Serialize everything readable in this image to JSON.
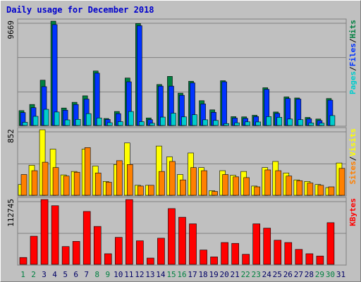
{
  "title": "Daily usage for December 2018",
  "colors": {
    "background": "#c0c0c0",
    "panel_border": "#808080",
    "title": "#0000cc",
    "pages": "#00cccc",
    "files": "#0033ff",
    "hits": "#008040",
    "visits": "#ffff00",
    "sites": "#ff8000",
    "kbytes": "#ff0000",
    "weekday_label": "#000066",
    "weekend_label": "#008040"
  },
  "chart_data": [
    {
      "type": "bar",
      "panel": "hits-files-pages",
      "ymax_label": "9669",
      "ylim": [
        0,
        9669
      ],
      "right_labels": [
        {
          "text": "Pages",
          "color": "#00cccc"
        },
        {
          "text": "/",
          "color": "#000000"
        },
        {
          "text": "Files",
          "color": "#0033ff"
        },
        {
          "text": "/",
          "color": "#000000"
        },
        {
          "text": "Hits",
          "color": "#008040"
        }
      ],
      "categories": [
        "1",
        "2",
        "3",
        "4",
        "5",
        "6",
        "7",
        "8",
        "9",
        "10",
        "11",
        "12",
        "13",
        "14",
        "15",
        "16",
        "17",
        "18",
        "19",
        "20",
        "21",
        "22",
        "23",
        "24",
        "25",
        "26",
        "27",
        "28",
        "29",
        "30",
        "31"
      ],
      "series": [
        {
          "name": "Hits",
          "color": "#008040",
          "values": [
            1380,
            1950,
            4200,
            9669,
            1620,
            2150,
            2750,
            5050,
            650,
            1300,
            4400,
            9450,
            700,
            3800,
            4550,
            3000,
            4100,
            2300,
            1450,
            4150,
            820,
            800,
            950,
            3500,
            1250,
            2650,
            2550,
            750,
            600,
            2500,
            0
          ]
        },
        {
          "name": "Files",
          "color": "#0033ff",
          "values": [
            1200,
            1650,
            3600,
            9350,
            1420,
            1950,
            2450,
            4850,
            560,
            1100,
            4050,
            9250,
            540,
            3650,
            3650,
            2800,
            3950,
            2000,
            1220,
            4050,
            690,
            660,
            830,
            3350,
            1120,
            2500,
            2450,
            620,
            460,
            2350,
            0
          ]
        },
        {
          "name": "Pages",
          "color": "#00cccc",
          "values": [
            300,
            850,
            1500,
            1250,
            520,
            570,
            1100,
            700,
            260,
            360,
            1300,
            360,
            210,
            780,
            1140,
            800,
            1000,
            530,
            470,
            180,
            250,
            340,
            330,
            820,
            760,
            600,
            540,
            240,
            220,
            920,
            0
          ]
        }
      ]
    },
    {
      "type": "bar",
      "panel": "visits-sites",
      "ymax_label": "852",
      "ylim": [
        0,
        852
      ],
      "right_labels": [
        {
          "text": "Sites",
          "color": "#ff8000"
        },
        {
          "text": "/",
          "color": "#000000"
        },
        {
          "text": "Visits",
          "color": "#ffff00"
        }
      ],
      "categories": [
        "1",
        "2",
        "3",
        "4",
        "5",
        "6",
        "7",
        "8",
        "9",
        "10",
        "11",
        "12",
        "13",
        "14",
        "15",
        "16",
        "17",
        "18",
        "19",
        "20",
        "21",
        "22",
        "23",
        "24",
        "25",
        "26",
        "27",
        "28",
        "29",
        "30",
        "31"
      ],
      "series": [
        {
          "name": "Visits",
          "color": "#ffff00",
          "values": [
            140,
            390,
            852,
            600,
            265,
            310,
            600,
            380,
            180,
            400,
            680,
            130,
            130,
            640,
            500,
            270,
            550,
            360,
            60,
            320,
            260,
            310,
            120,
            360,
            440,
            290,
            200,
            180,
            140,
            100,
            420
          ]
        },
        {
          "name": "Sites",
          "color": "#ff8000",
          "values": [
            270,
            320,
            430,
            360,
            250,
            300,
            620,
            290,
            170,
            450,
            400,
            120,
            130,
            310,
            440,
            200,
            360,
            320,
            50,
            270,
            240,
            230,
            110,
            330,
            320,
            250,
            190,
            160,
            130,
            110,
            350
          ]
        }
      ]
    },
    {
      "type": "bar",
      "panel": "kbytes",
      "ymax_label": "112745",
      "ylim": [
        0,
        112745
      ],
      "right_labels": [
        {
          "text": "KBytes",
          "color": "#ff0000"
        }
      ],
      "categories": [
        "1",
        "2",
        "3",
        "4",
        "5",
        "6",
        "7",
        "8",
        "9",
        "10",
        "11",
        "12",
        "13",
        "14",
        "15",
        "16",
        "17",
        "18",
        "19",
        "20",
        "21",
        "22",
        "23",
        "24",
        "25",
        "26",
        "27",
        "28",
        "29",
        "30",
        "31"
      ],
      "series": [
        {
          "name": "KBytes",
          "color": "#ff0000",
          "values": [
            12000,
            49000,
            112745,
            102000,
            31000,
            40000,
            92000,
            66000,
            18500,
            47000,
            112745,
            41000,
            11000,
            45500,
            97000,
            82000,
            70500,
            25000,
            13000,
            38000,
            36500,
            17500,
            70500,
            63000,
            42000,
            38000,
            26000,
            18500,
            14500,
            72500,
            0
          ]
        }
      ]
    }
  ],
  "x_labels": [
    {
      "day": "1",
      "weekend": true
    },
    {
      "day": "2",
      "weekend": true
    },
    {
      "day": "3",
      "weekend": false
    },
    {
      "day": "4",
      "weekend": false
    },
    {
      "day": "5",
      "weekend": false
    },
    {
      "day": "6",
      "weekend": false
    },
    {
      "day": "7",
      "weekend": false
    },
    {
      "day": "8",
      "weekend": true
    },
    {
      "day": "9",
      "weekend": true
    },
    {
      "day": "10",
      "weekend": false
    },
    {
      "day": "11",
      "weekend": false
    },
    {
      "day": "12",
      "weekend": false
    },
    {
      "day": "13",
      "weekend": false
    },
    {
      "day": "14",
      "weekend": false
    },
    {
      "day": "15",
      "weekend": true
    },
    {
      "day": "16",
      "weekend": true
    },
    {
      "day": "17",
      "weekend": false
    },
    {
      "day": "18",
      "weekend": false
    },
    {
      "day": "19",
      "weekend": false
    },
    {
      "day": "20",
      "weekend": false
    },
    {
      "day": "21",
      "weekend": false
    },
    {
      "day": "22",
      "weekend": true
    },
    {
      "day": "23",
      "weekend": true
    },
    {
      "day": "24",
      "weekend": false
    },
    {
      "day": "25",
      "weekend": false
    },
    {
      "day": "26",
      "weekend": false
    },
    {
      "day": "27",
      "weekend": false
    },
    {
      "day": "28",
      "weekend": false
    },
    {
      "day": "29",
      "weekend": true
    },
    {
      "day": "30",
      "weekend": true
    },
    {
      "day": "31",
      "weekend": false
    }
  ]
}
